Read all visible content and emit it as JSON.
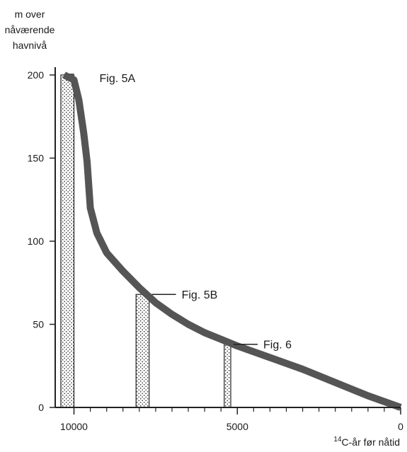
{
  "chart_data": {
    "type": "area",
    "ylabel_lines": [
      "m over",
      "nåværende",
      "havnivå"
    ],
    "xlabel_sup": "14",
    "xlabel_main": "C-år før nåtid",
    "xlim": [
      10500,
      0
    ],
    "ylim": [
      0,
      200
    ],
    "x_ticks": [
      10000,
      5000,
      0
    ],
    "x_minor_ticks": [
      9500,
      9000,
      8500,
      8000,
      7500,
      7000,
      6500,
      6000,
      5500,
      4500,
      4000,
      3500,
      3000,
      2500,
      2000,
      1500,
      1000,
      500
    ],
    "y_ticks": [
      0,
      50,
      100,
      150,
      200
    ],
    "grid": false,
    "curve": {
      "x": [
        10300,
        10000,
        9850,
        9700,
        9600,
        9500,
        9300,
        9000,
        8500,
        8000,
        7500,
        7000,
        6500,
        6000,
        5500,
        5000,
        4000,
        3000,
        2000,
        1000,
        0
      ],
      "y": [
        200,
        197,
        185,
        165,
        148,
        120,
        105,
        93,
        82,
        72,
        63,
        56,
        50,
        45,
        41,
        37,
        30,
        23,
        15,
        7,
        0
      ]
    },
    "annotations": [
      {
        "label": "Fig. 5A",
        "x": 10000,
        "y": 200,
        "bar_x": [
          10400,
          10000
        ],
        "height": 200
      },
      {
        "label": "Fig. 5B",
        "x": 7900,
        "y": 68,
        "bar_x": [
          8100,
          7700
        ],
        "height": 68
      },
      {
        "label": "Fig. 6",
        "x": 5250,
        "y": 38,
        "bar_x": [
          5400,
          5200
        ],
        "height": 38
      }
    ]
  }
}
